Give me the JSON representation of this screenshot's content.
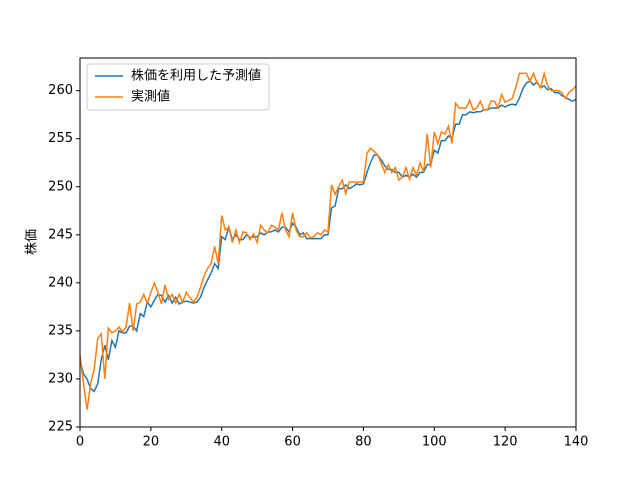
{
  "chart_data": {
    "type": "line",
    "ylabel": "株価",
    "x": [
      0,
      1,
      2,
      3,
      4,
      5,
      6,
      7,
      8,
      9,
      10,
      11,
      12,
      13,
      14,
      15,
      16,
      17,
      18,
      19,
      20,
      21,
      22,
      23,
      24,
      25,
      26,
      27,
      28,
      29,
      30,
      31,
      32,
      33,
      34,
      35,
      36,
      37,
      38,
      39,
      40,
      41,
      42,
      43,
      44,
      45,
      46,
      47,
      48,
      49,
      50,
      51,
      52,
      53,
      54,
      55,
      56,
      57,
      58,
      59,
      60,
      61,
      62,
      63,
      64,
      65,
      66,
      67,
      68,
      69,
      70,
      71,
      72,
      73,
      74,
      75,
      76,
      77,
      78,
      79,
      80,
      81,
      82,
      83,
      84,
      85,
      86,
      87,
      88,
      89,
      90,
      91,
      92,
      93,
      94,
      95,
      96,
      97,
      98,
      99,
      100,
      101,
      102,
      103,
      104,
      105,
      106,
      107,
      108,
      109,
      110,
      111,
      112,
      113,
      114,
      115,
      116,
      117,
      118,
      119,
      120,
      121,
      122,
      123,
      124,
      125,
      126,
      127,
      128,
      129,
      130,
      131,
      132,
      133,
      134,
      135,
      136,
      137,
      138,
      139,
      140
    ],
    "series": [
      {
        "name": "株価を利用した予測値",
        "color": "#1f77b4",
        "values": [
          232,
          230.5,
          230,
          229,
          228.7,
          229.5,
          232,
          233.5,
          232,
          234,
          233.3,
          235,
          234.8,
          234.8,
          235.5,
          235.5,
          235,
          236.8,
          236.5,
          238,
          237.5,
          238.2,
          238.8,
          238.7,
          238,
          238.7,
          237.9,
          238.5,
          237.8,
          238,
          238.1,
          238,
          237.9,
          238,
          238.5,
          239.5,
          240.3,
          241,
          242,
          241.5,
          244.8,
          244.5,
          245.8,
          244.5,
          245,
          244.5,
          244.5,
          245,
          244.7,
          244.8,
          244.8,
          245.2,
          245,
          245.3,
          245.3,
          245.5,
          245.3,
          245.8,
          245.8,
          245.3,
          246.2,
          245.8,
          245,
          245.2,
          244.6,
          244.6,
          244.6,
          244.6,
          244.6,
          245,
          245,
          247.8,
          248,
          249.8,
          249.8,
          250.2,
          249.8,
          250,
          250.3,
          250.2,
          250.3,
          251.5,
          252.5,
          253.3,
          253.3,
          252.8,
          252.2,
          251.8,
          251.8,
          251.5,
          251.5,
          251,
          251.2,
          251,
          251.3,
          251,
          251.5,
          251.5,
          252.3,
          252.3,
          253.8,
          253.5,
          254.8,
          254.8,
          255.3,
          255,
          256.5,
          256.5,
          257.5,
          257.5,
          257.8,
          257.7,
          257.8,
          257.8,
          258,
          258,
          258.2,
          258.2,
          258.2,
          258.5,
          258.3,
          258.5,
          258.6,
          258.5,
          259.2,
          260.2,
          260.8,
          261,
          260.6,
          260.9,
          260.3,
          260.5,
          260.1,
          260.2,
          259.8,
          259.8,
          259.5,
          259.3,
          259.1,
          258.9,
          259.1
        ]
      },
      {
        "name": "実測値",
        "color": "#ff7f0e",
        "values": [
          232.5,
          229.5,
          226.8,
          229.5,
          231,
          234.2,
          234.7,
          230,
          235.3,
          234.8,
          235,
          235.4,
          234.9,
          235.4,
          237.9,
          235,
          237.8,
          238,
          238.8,
          237.9,
          239,
          240,
          239,
          237.8,
          239.8,
          238.3,
          238.8,
          237.9,
          238.8,
          238,
          239,
          238.5,
          238,
          238.5,
          239.5,
          240.7,
          241.5,
          242,
          243.8,
          242,
          247,
          245.5,
          245.8,
          244.2,
          245.5,
          244.2,
          245.3,
          245.2,
          244.5,
          245.1,
          244.2,
          246,
          245.5,
          245.2,
          246,
          245.8,
          245.5,
          247.3,
          245.5,
          244.8,
          247.3,
          245.5,
          244.8,
          244.8,
          245.2,
          244.7,
          244.8,
          245.2,
          245,
          245.5,
          245.3,
          250.2,
          249.2,
          250,
          250.7,
          249.3,
          250.5,
          250.5,
          250.5,
          250.5,
          250.5,
          253.5,
          254,
          253.7,
          253.3,
          252.5,
          251.5,
          252.3,
          251.5,
          252,
          250.7,
          251,
          252,
          250.8,
          252,
          251.2,
          252.5,
          251.5,
          255.5,
          252,
          255.7,
          254.5,
          255.7,
          255.5,
          256.3,
          254.5,
          258.7,
          258.2,
          258.2,
          258.2,
          259,
          258,
          258.2,
          258.9,
          258,
          258,
          258.9,
          258.9,
          258.2,
          259.6,
          258.8,
          259,
          259.2,
          260.3,
          261.8,
          261.8,
          261.8,
          261,
          261.8,
          260.8,
          260.3,
          261.8,
          260.5,
          260,
          260,
          260,
          259.8,
          259.2,
          259.8,
          260.1,
          260.5
        ]
      }
    ],
    "xlim": [
      0,
      140
    ],
    "xticks": [
      0,
      20,
      40,
      60,
      80,
      100,
      120,
      140
    ],
    "ylim": [
      225,
      263.4
    ],
    "yticks": [
      225,
      230,
      235,
      240,
      245,
      250,
      255,
      260
    ],
    "legend": "upper left",
    "grid": false
  }
}
